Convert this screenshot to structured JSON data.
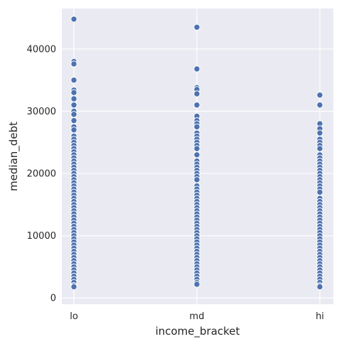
{
  "chart_data": {
    "type": "scatter",
    "title": "",
    "xlabel": "income_bracket",
    "ylabel": "median_debt",
    "categories": [
      "lo",
      "md",
      "hi"
    ],
    "yticks": [
      "0",
      "10000",
      "20000",
      "30000",
      "40000"
    ],
    "ylim": [
      -1000,
      46500
    ],
    "grid": true,
    "colors": {
      "background": "#eaeaf2",
      "grid": "#ffffff",
      "points": "#4c72b0"
    },
    "series": [
      {
        "category": "lo",
        "values": [
          44800,
          38000,
          37600,
          35000,
          33400,
          33000,
          32000,
          31000,
          30000,
          29500,
          28500,
          27500,
          27000,
          26000,
          25500,
          25000,
          24500,
          24000,
          23500,
          23000,
          22500,
          22000,
          21500,
          21000,
          20500,
          20000,
          19500,
          19000,
          18500,
          18000,
          17500,
          17000,
          16500,
          16000,
          15500,
          15000,
          14500,
          14000,
          13500,
          13000,
          12500,
          12000,
          11500,
          11000,
          10500,
          10000,
          9500,
          9000,
          8500,
          8000,
          7500,
          7000,
          6500,
          6000,
          5500,
          5000,
          4500,
          4000,
          3500,
          3000,
          2500,
          2000,
          1800
        ]
      },
      {
        "category": "md",
        "values": [
          43500,
          36800,
          33800,
          33500,
          32800,
          31000,
          29200,
          28500,
          28000,
          27500,
          26500,
          26000,
          25500,
          25000,
          24500,
          24000,
          23000,
          22000,
          21500,
          21000,
          20500,
          20000,
          19500,
          19000,
          18000,
          17500,
          17000,
          16500,
          16000,
          15500,
          15000,
          14500,
          14000,
          13500,
          13000,
          12500,
          12000,
          11500,
          11000,
          10500,
          10000,
          9500,
          9000,
          8500,
          8000,
          7500,
          7000,
          6500,
          6000,
          5500,
          5000,
          4500,
          4000,
          3500,
          3000,
          2500,
          2200
        ]
      },
      {
        "category": "hi",
        "values": [
          32600,
          31000,
          28000,
          27200,
          26500,
          25500,
          25000,
          24500,
          24000,
          23000,
          22500,
          22000,
          21500,
          21000,
          20500,
          20000,
          19500,
          19000,
          18500,
          18000,
          17500,
          17000,
          16000,
          15500,
          15000,
          14500,
          14000,
          13500,
          13000,
          12500,
          12000,
          11500,
          11000,
          10500,
          10000,
          9500,
          9000,
          8500,
          8000,
          7500,
          7000,
          6500,
          6000,
          5500,
          5000,
          4500,
          4000,
          3500,
          3000,
          2500,
          2000,
          1800
        ]
      }
    ]
  }
}
